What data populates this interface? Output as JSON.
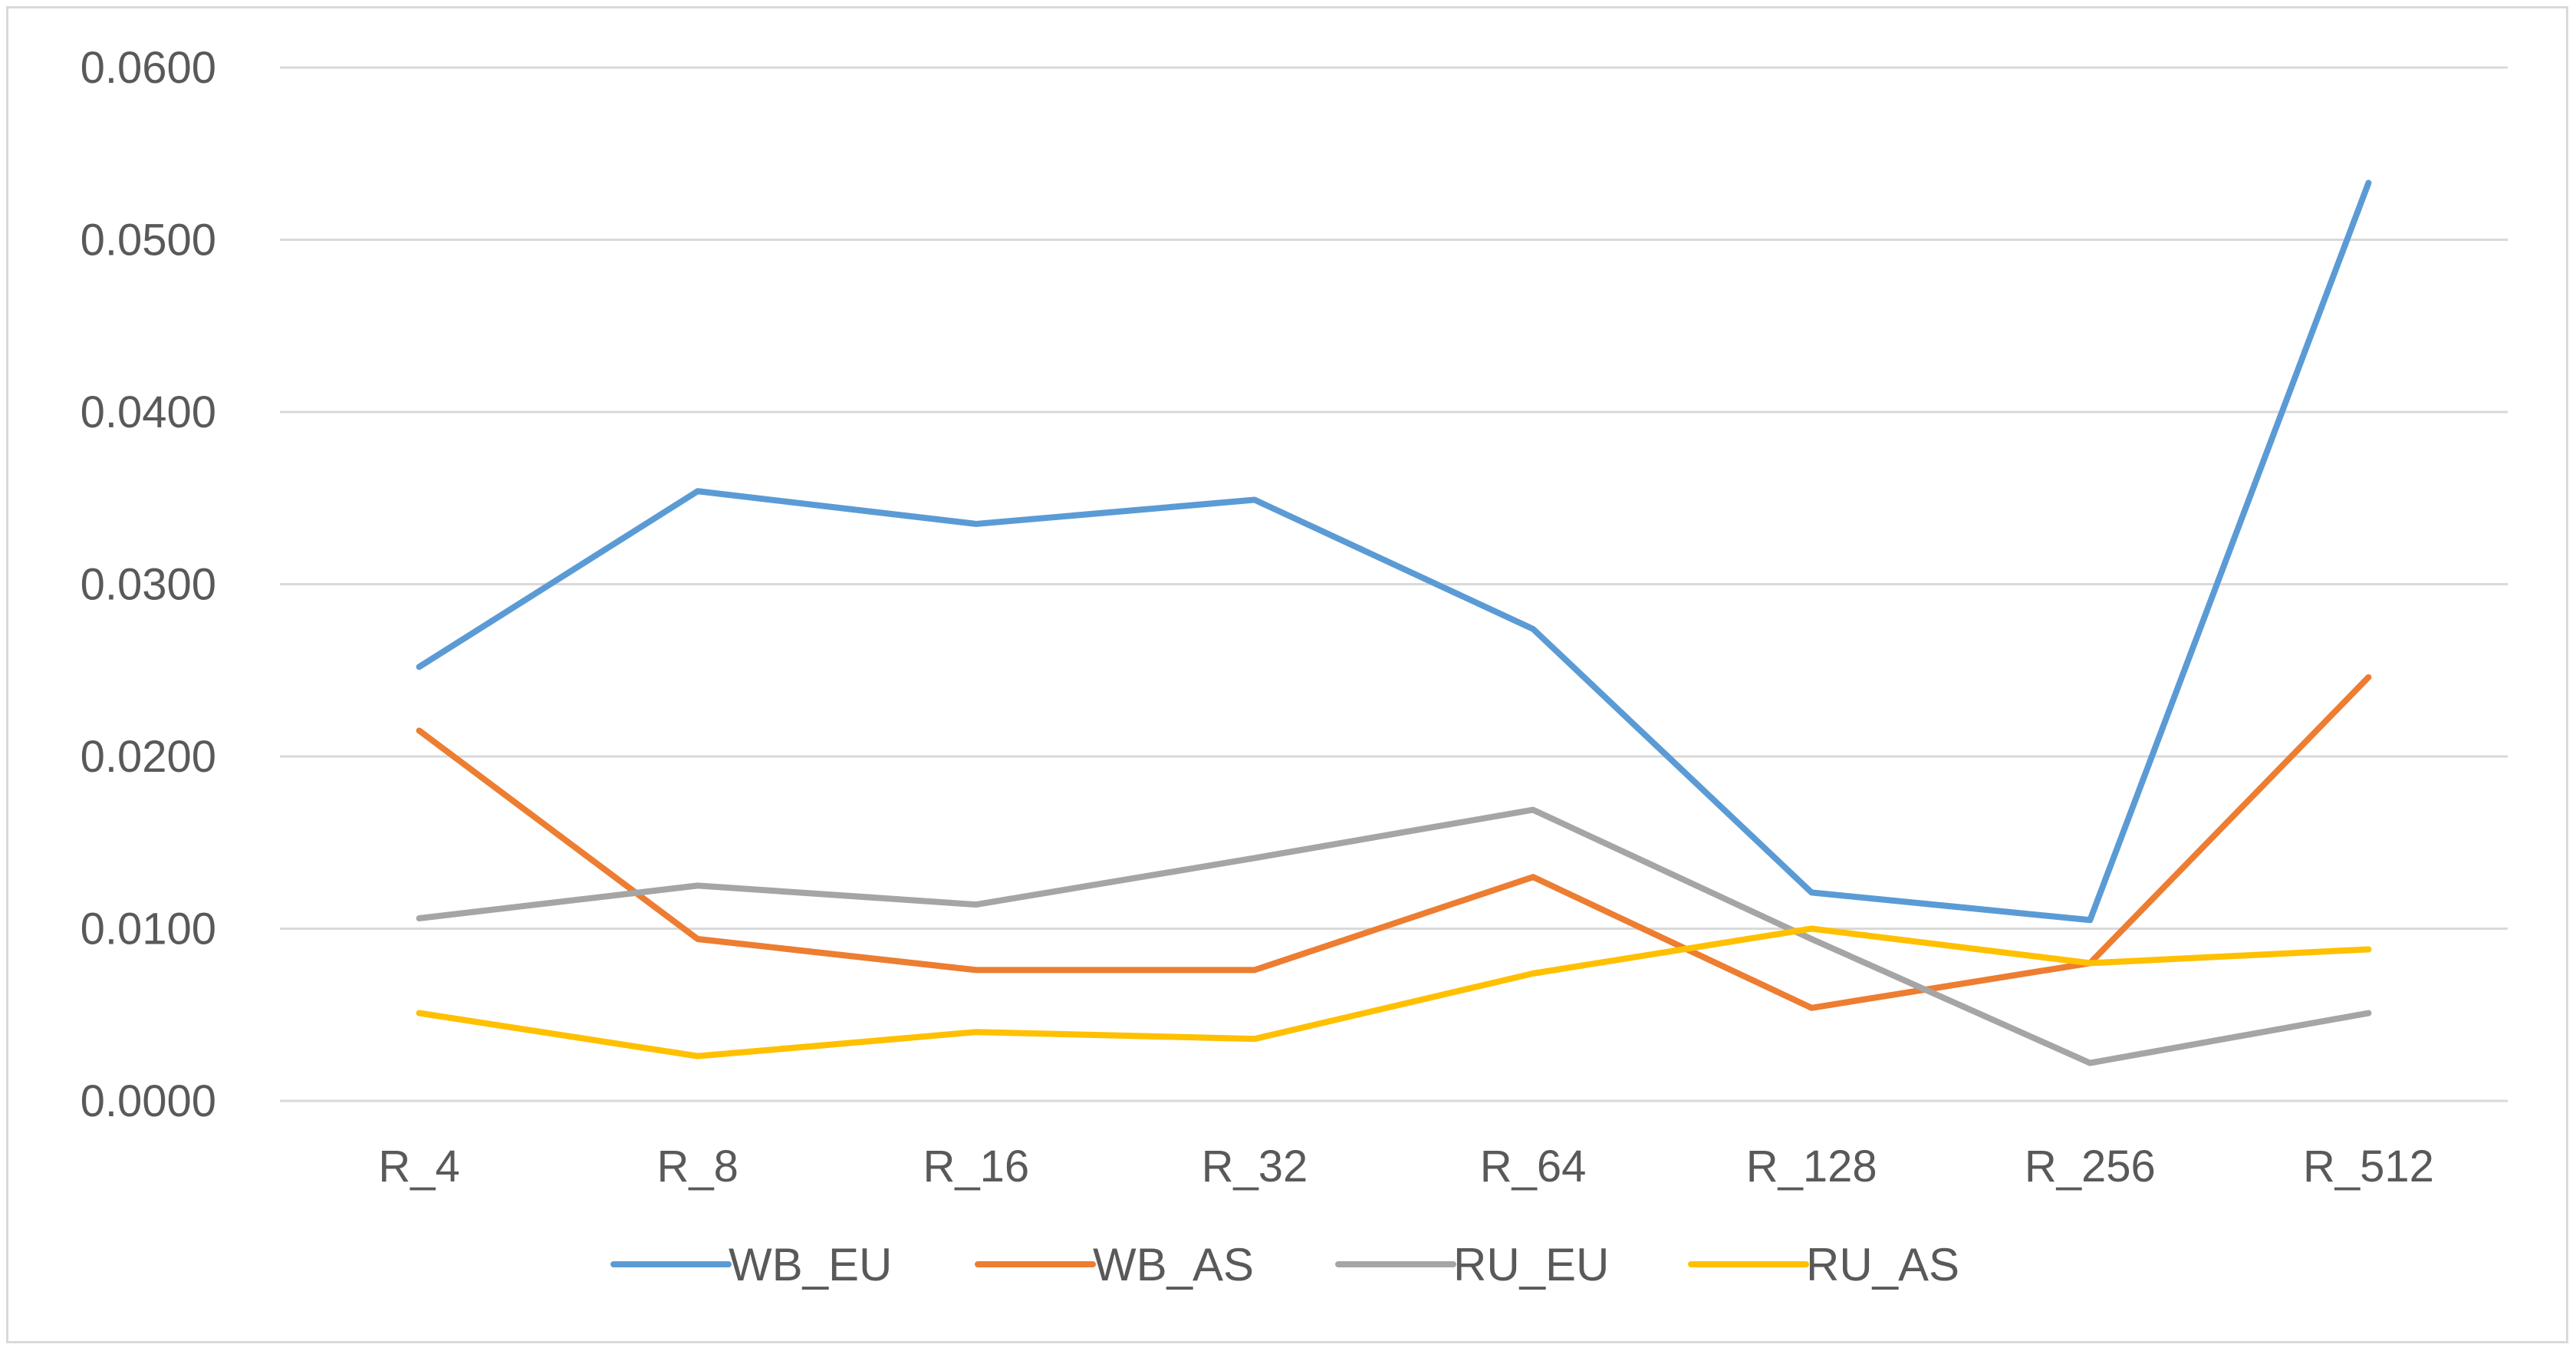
{
  "chart_data": {
    "type": "line",
    "title": "",
    "xlabel": "",
    "ylabel": "",
    "categories": [
      "R_4",
      "R_8",
      "R_16",
      "R_32",
      "R_64",
      "R_128",
      "R_256",
      "R_512"
    ],
    "ylim": [
      0,
      0.06
    ],
    "yticks": [
      "0.0000",
      "0.0100",
      "0.0200",
      "0.0300",
      "0.0400",
      "0.0500",
      "0.0600"
    ],
    "grid": true,
    "legend_position": "bottom",
    "series": [
      {
        "name": "WB_EU",
        "color": "#5B9BD5",
        "values": [
          0.0252,
          0.0354,
          0.0335,
          0.0349,
          0.0274,
          0.0121,
          0.0105,
          0.0533
        ]
      },
      {
        "name": "WB_AS",
        "color": "#ED7D31",
        "values": [
          0.0215,
          0.0094,
          0.0076,
          0.0076,
          0.013,
          0.0054,
          0.008,
          0.0246
        ]
      },
      {
        "name": "RU_EU",
        "color": "#A5A5A5",
        "values": [
          0.0106,
          0.0125,
          0.0114,
          0.0141,
          0.0169,
          0.0094,
          0.0022,
          0.0051
        ]
      },
      {
        "name": "RU_AS",
        "color": "#FFC000",
        "values": [
          0.0051,
          0.0026,
          0.004,
          0.0036,
          0.0074,
          0.01,
          0.008,
          0.0088
        ]
      }
    ]
  }
}
